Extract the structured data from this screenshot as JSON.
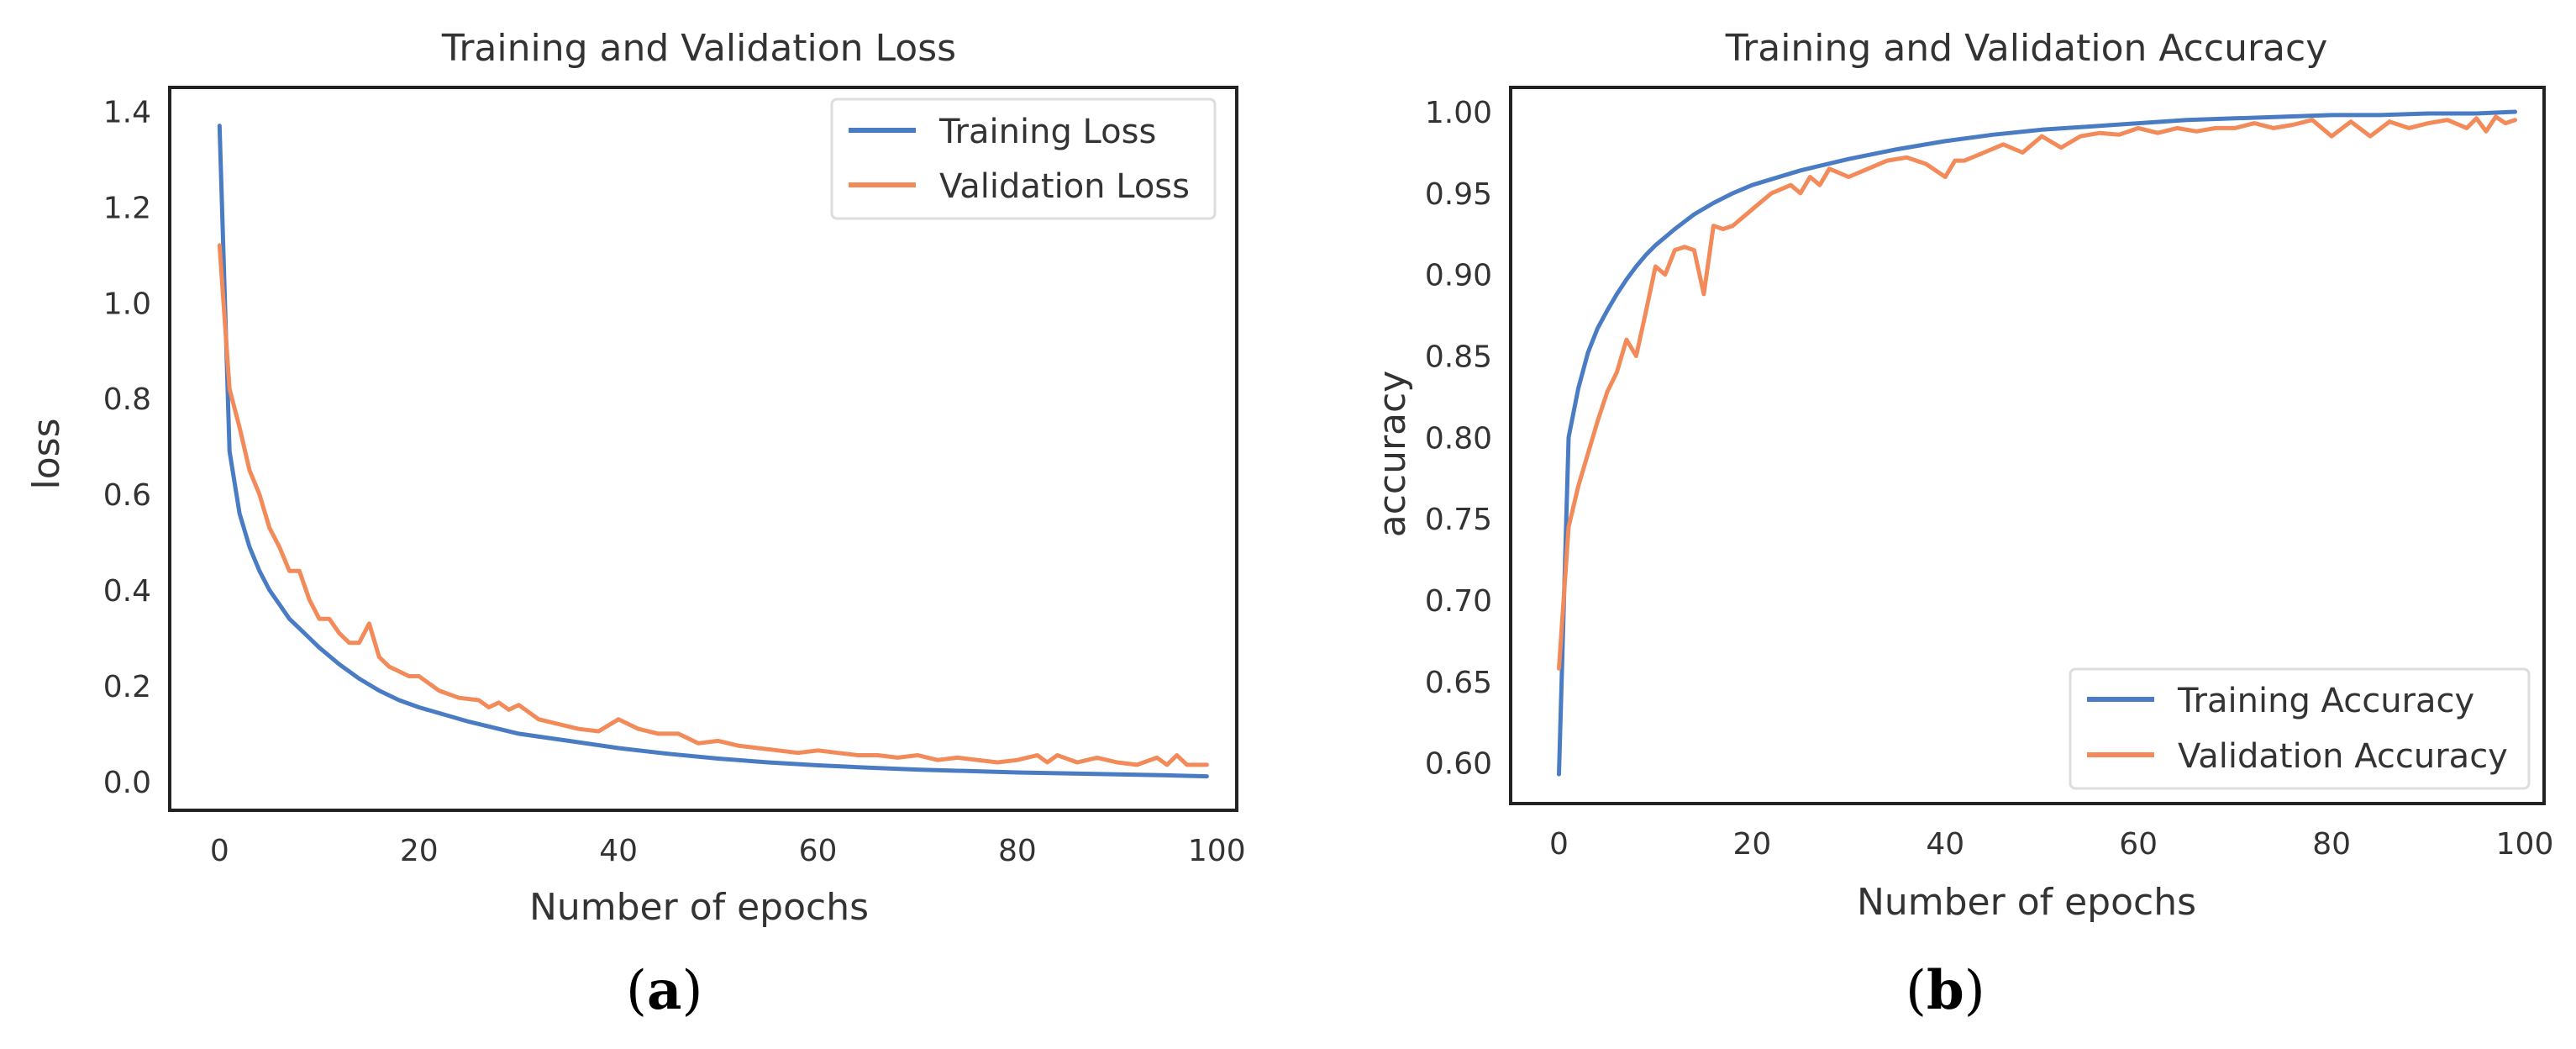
{
  "colors": {
    "training": "#4a7cc4",
    "validation": "#f28a5a",
    "frame": "#222222",
    "text": "#333333"
  },
  "chart_data": [
    {
      "type": "line",
      "caption": {
        "open": "(",
        "letter": "a",
        "close": ")"
      },
      "title": "Training and Validation Loss",
      "xlabel": "Number of epochs",
      "ylabel": "loss",
      "xlim": [
        -5,
        102
      ],
      "ylim": [
        -0.06,
        1.45
      ],
      "xticks": [
        0,
        20,
        40,
        60,
        80,
        100
      ],
      "yticks": [
        0.0,
        0.2,
        0.4,
        0.6,
        0.8,
        1.0,
        1.2,
        1.4
      ],
      "ytick_decimals": 1,
      "legend": "top-right",
      "series": [
        {
          "name": "Training Loss",
          "x": [
            0,
            1,
            2,
            3,
            4,
            5,
            6,
            7,
            8,
            9,
            10,
            12,
            14,
            16,
            18,
            20,
            25,
            30,
            35,
            40,
            45,
            50,
            55,
            60,
            65,
            70,
            75,
            80,
            85,
            90,
            95,
            99
          ],
          "y": [
            1.37,
            0.69,
            0.56,
            0.49,
            0.44,
            0.4,
            0.37,
            0.34,
            0.32,
            0.3,
            0.28,
            0.245,
            0.215,
            0.19,
            0.17,
            0.155,
            0.125,
            0.1,
            0.085,
            0.07,
            0.058,
            0.048,
            0.04,
            0.034,
            0.029,
            0.025,
            0.022,
            0.019,
            0.017,
            0.015,
            0.013,
            0.011
          ]
        },
        {
          "name": "Validation Loss",
          "x": [
            0,
            1,
            2,
            3,
            4,
            5,
            6,
            7,
            8,
            9,
            10,
            11,
            12,
            13,
            14,
            15,
            16,
            17,
            18,
            19,
            20,
            22,
            24,
            26,
            27,
            28,
            29,
            30,
            32,
            34,
            36,
            38,
            40,
            42,
            44,
            46,
            48,
            50,
            52,
            54,
            56,
            58,
            60,
            62,
            64,
            66,
            68,
            70,
            72,
            74,
            76,
            78,
            80,
            82,
            83,
            84,
            86,
            88,
            90,
            92,
            94,
            95,
            96,
            97,
            98,
            99
          ],
          "y": [
            1.12,
            0.82,
            0.74,
            0.65,
            0.6,
            0.53,
            0.49,
            0.44,
            0.44,
            0.38,
            0.34,
            0.34,
            0.31,
            0.29,
            0.29,
            0.33,
            0.26,
            0.24,
            0.23,
            0.22,
            0.22,
            0.19,
            0.175,
            0.17,
            0.155,
            0.165,
            0.15,
            0.16,
            0.13,
            0.12,
            0.11,
            0.105,
            0.13,
            0.11,
            0.1,
            0.1,
            0.08,
            0.085,
            0.075,
            0.07,
            0.065,
            0.06,
            0.065,
            0.06,
            0.055,
            0.055,
            0.05,
            0.055,
            0.045,
            0.05,
            0.045,
            0.04,
            0.045,
            0.055,
            0.04,
            0.055,
            0.04,
            0.05,
            0.04,
            0.035,
            0.05,
            0.035,
            0.055,
            0.035,
            0.035,
            0.035
          ]
        }
      ]
    },
    {
      "type": "line",
      "caption": {
        "open": "(",
        "letter": "b",
        "close": ")"
      },
      "title": "Training and Validation Accuracy",
      "xlabel": "Number of epochs",
      "ylabel": "accuracy",
      "xlim": [
        -5,
        102
      ],
      "ylim": [
        0.575,
        1.015
      ],
      "xticks": [
        0,
        20,
        40,
        60,
        80,
        100
      ],
      "yticks": [
        0.6,
        0.65,
        0.7,
        0.75,
        0.8,
        0.85,
        0.9,
        0.95,
        1.0
      ],
      "ytick_decimals": 2,
      "legend": "bottom-right",
      "series": [
        {
          "name": "Training Accuracy",
          "x": [
            0,
            1,
            2,
            3,
            4,
            5,
            6,
            7,
            8,
            9,
            10,
            12,
            14,
            16,
            18,
            20,
            25,
            30,
            35,
            40,
            45,
            50,
            55,
            60,
            65,
            70,
            75,
            80,
            85,
            90,
            95,
            99
          ],
          "y": [
            0.593,
            0.8,
            0.83,
            0.852,
            0.867,
            0.878,
            0.888,
            0.897,
            0.905,
            0.912,
            0.918,
            0.928,
            0.937,
            0.944,
            0.95,
            0.955,
            0.964,
            0.971,
            0.977,
            0.982,
            0.986,
            0.989,
            0.991,
            0.993,
            0.995,
            0.996,
            0.997,
            0.998,
            0.998,
            0.999,
            0.999,
            1.0
          ]
        },
        {
          "name": "Validation Accuracy",
          "x": [
            0,
            1,
            2,
            3,
            4,
            5,
            6,
            7,
            8,
            9,
            10,
            11,
            12,
            13,
            14,
            15,
            16,
            17,
            18,
            20,
            22,
            24,
            25,
            26,
            27,
            28,
            30,
            32,
            34,
            36,
            38,
            40,
            41,
            42,
            44,
            46,
            48,
            50,
            52,
            54,
            56,
            58,
            60,
            62,
            64,
            66,
            68,
            70,
            72,
            74,
            76,
            78,
            80,
            82,
            84,
            86,
            88,
            90,
            92,
            94,
            95,
            96,
            97,
            98,
            99
          ],
          "y": [
            0.658,
            0.745,
            0.77,
            0.79,
            0.81,
            0.828,
            0.84,
            0.86,
            0.85,
            0.877,
            0.905,
            0.9,
            0.915,
            0.917,
            0.915,
            0.888,
            0.93,
            0.928,
            0.93,
            0.94,
            0.95,
            0.955,
            0.95,
            0.96,
            0.955,
            0.965,
            0.96,
            0.965,
            0.97,
            0.972,
            0.968,
            0.96,
            0.97,
            0.97,
            0.975,
            0.98,
            0.975,
            0.985,
            0.978,
            0.985,
            0.987,
            0.986,
            0.99,
            0.987,
            0.99,
            0.988,
            0.99,
            0.99,
            0.993,
            0.99,
            0.992,
            0.995,
            0.985,
            0.994,
            0.985,
            0.994,
            0.99,
            0.993,
            0.995,
            0.99,
            0.996,
            0.988,
            0.997,
            0.993,
            0.995
          ]
        }
      ]
    }
  ]
}
